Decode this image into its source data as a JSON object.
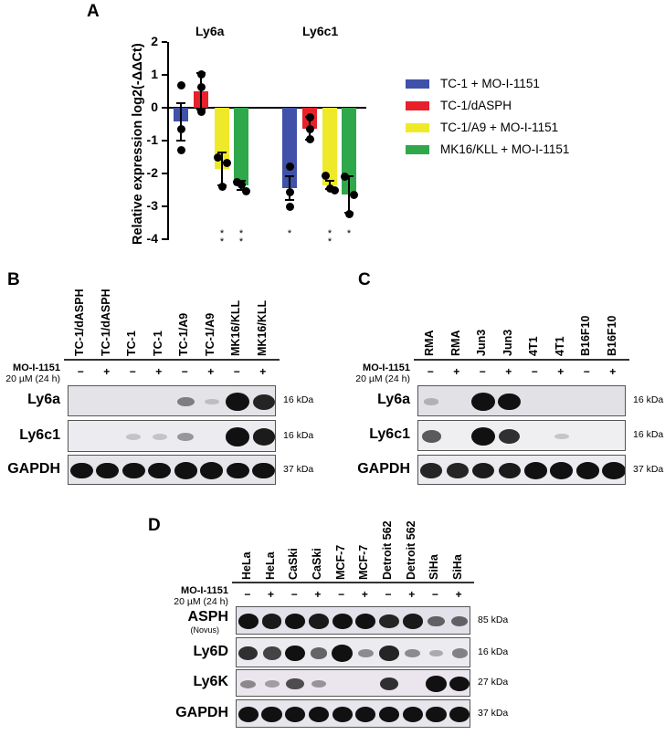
{
  "panels": {
    "A": {
      "letter": "A"
    },
    "B": {
      "letter": "B"
    },
    "C": {
      "letter": "C"
    },
    "D": {
      "letter": "D"
    }
  },
  "chart_data": {
    "type": "bar",
    "title": "",
    "categories": [
      "Ly6a",
      "Ly6c1"
    ],
    "ylabel": "Relative expression log2(-ΔΔCt)",
    "xlabel": "",
    "ylim": [
      -4,
      2
    ],
    "yticks": [
      "2",
      "1",
      "0",
      "-1",
      "-2",
      "-3",
      "-4"
    ],
    "grid": false,
    "legend_position": "right",
    "series": [
      {
        "name": "TC-1 + MO-I-1151",
        "color": "#3f51a8",
        "values": [
          -0.43,
          -2.45
        ],
        "error": [
          0.58,
          0.36
        ],
        "points": [
          [
            0.67,
            -0.66,
            -1.3
          ],
          [
            -1.78,
            -2.58,
            -3.02
          ]
        ],
        "significance": [
          "",
          "*"
        ]
      },
      {
        "name": "TC-1/dASPH",
        "color": "#e8202a",
        "values": [
          0.5,
          -0.63
        ],
        "error": [
          0.55,
          0.34
        ],
        "points": [
          [
            1.02,
            0.63,
            -0.12
          ],
          [
            -0.3,
            -0.64,
            -0.97
          ]
        ],
        "significance": [
          "",
          ""
        ]
      },
      {
        "name": "TC-1/A9 + MO-I-1151",
        "color": "#eeea2a",
        "values": [
          -1.87,
          -2.35
        ],
        "error": [
          0.5,
          0.12
        ],
        "points": [
          [
            -1.52,
            -1.68,
            -2.4
          ],
          [
            -2.08,
            -2.52,
            -2.45
          ]
        ],
        "significance": [
          "**",
          "**"
        ]
      },
      {
        "name": "MK16/KLL + MO-I-1151",
        "color": "#2ea84a",
        "values": [
          -2.37,
          -2.64
        ],
        "error": [
          0.14,
          0.56
        ],
        "points": [
          [
            -2.25,
            -2.53,
            -2.35
          ],
          [
            -2.1,
            -2.64,
            -3.23
          ]
        ],
        "significance": [
          "**",
          "*"
        ]
      }
    ]
  },
  "blots": {
    "treatment_header": {
      "drug": "MO-I-1151",
      "dose": "20 µM (24 h)"
    },
    "B": {
      "lanes": [
        "TC-1/dASPH",
        "TC-1/dASPH",
        "TC-1",
        "TC-1",
        "TC-1/A9",
        "TC-1/A9",
        "MK16/KLL",
        "MK16/KLL"
      ],
      "treatment": [
        "−",
        "+",
        "−",
        "+",
        "−",
        "+",
        "−",
        "+"
      ],
      "rows": [
        {
          "label": "Ly6a",
          "kda": "16 kDa",
          "intensity": [
            0,
            0,
            0,
            0,
            0.35,
            0.03,
            1.0,
            0.8
          ]
        },
        {
          "label": "Ly6c1",
          "kda": "16 kDa",
          "intensity": [
            0,
            0,
            0.03,
            0.03,
            0.25,
            0,
            1.0,
            0.85
          ]
        },
        {
          "label": "GAPDH",
          "kda": "37 kDa",
          "intensity": [
            0.9,
            0.9,
            0.9,
            0.9,
            0.95,
            0.95,
            0.9,
            0.9
          ]
        }
      ]
    },
    "C": {
      "lanes": [
        "RMA",
        "RMA",
        "Jun3",
        "Jun3",
        "4T1",
        "4T1",
        "B16F10",
        "B16F10"
      ],
      "treatment": [
        "−",
        "+",
        "−",
        "+",
        "−",
        "+",
        "−",
        "+"
      ],
      "rows": [
        {
          "label": "Ly6a",
          "kda": "16 kDa",
          "intensity": [
            0.08,
            0,
            1.0,
            0.9,
            0,
            0,
            0,
            0
          ]
        },
        {
          "label": "Ly6c1",
          "kda": "16 kDa",
          "intensity": [
            0.55,
            0,
            1.0,
            0.75,
            0,
            0.04,
            0,
            0
          ]
        },
        {
          "label": "GAPDH",
          "kda": "37 kDa",
          "intensity": [
            0.8,
            0.8,
            0.85,
            0.85,
            0.95,
            0.95,
            0.95,
            1.0
          ]
        }
      ]
    },
    "D": {
      "lanes": [
        "HeLa",
        "HeLa",
        "CaSki",
        "CaSki",
        "MCF-7",
        "MCF-7",
        "Detroit 562",
        "Detroit 562",
        "SiHa",
        "SiHa"
      ],
      "treatment": [
        "−",
        "+",
        "−",
        "+",
        "−",
        "+",
        "−",
        "+",
        "−",
        "+"
      ],
      "rows": [
        {
          "label": "ASPH",
          "sublabel": "(Novus)",
          "kda": "85 kDa",
          "intensity": [
            0.9,
            0.85,
            0.9,
            0.85,
            0.9,
            0.9,
            0.8,
            0.85,
            0.5,
            0.5
          ]
        },
        {
          "label": "Ly6D",
          "kda": "16 kDa",
          "intensity": [
            0.75,
            0.65,
            0.9,
            0.5,
            0.95,
            0.3,
            0.8,
            0.3,
            0.15,
            0.35
          ]
        },
        {
          "label": "Ly6K",
          "kda": "27 kDa",
          "intensity": [
            0.3,
            0.2,
            0.6,
            0.25,
            0,
            0,
            0.75,
            0,
            1.0,
            0.95
          ]
        },
        {
          "label": "GAPDH",
          "kda": "37 kDa",
          "intensity": [
            0.9,
            0.9,
            0.9,
            0.9,
            0.9,
            0.9,
            0.9,
            0.9,
            0.9,
            0.9
          ]
        }
      ]
    }
  }
}
